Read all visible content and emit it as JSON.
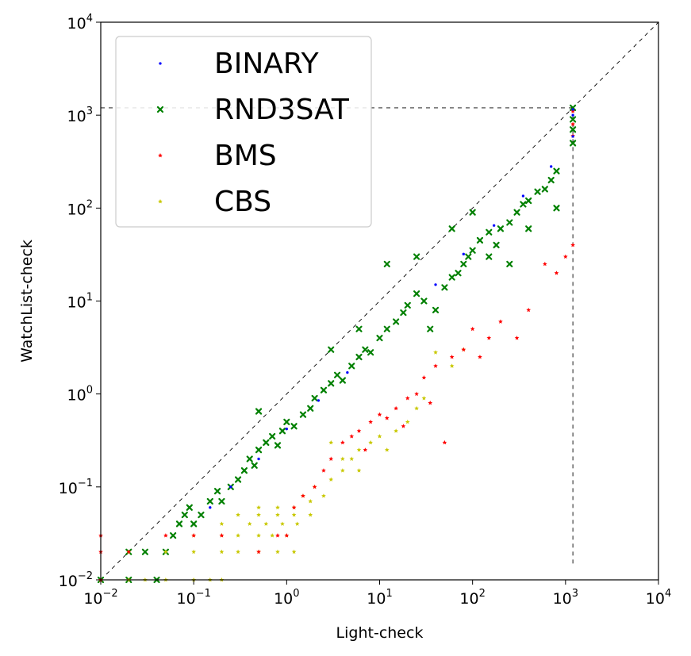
{
  "chart_data": {
    "type": "scatter",
    "title": "",
    "xlabel": "Light-check",
    "ylabel": "WatchList-check",
    "xscale": "log",
    "yscale": "log",
    "xlim": [
      0.01,
      10000
    ],
    "ylim": [
      0.01,
      10000
    ],
    "grid": false,
    "legend_position": "top-left",
    "x_tick_labels": [
      {
        "value": 0.01,
        "base": "10",
        "exp": "−2"
      },
      {
        "value": 0.1,
        "base": "10",
        "exp": "−1"
      },
      {
        "value": 1,
        "base": "10",
        "exp": "0"
      },
      {
        "value": 10,
        "base": "10",
        "exp": "1"
      },
      {
        "value": 100,
        "base": "10",
        "exp": "2"
      },
      {
        "value": 1000,
        "base": "10",
        "exp": "3"
      },
      {
        "value": 10000,
        "base": "10",
        "exp": "4"
      }
    ],
    "y_tick_labels": [
      {
        "value": 0.01,
        "base": "10",
        "exp": "−2"
      },
      {
        "value": 0.1,
        "base": "10",
        "exp": "−1"
      },
      {
        "value": 1,
        "base": "10",
        "exp": "0"
      },
      {
        "value": 10,
        "base": "10",
        "exp": "1"
      },
      {
        "value": 100,
        "base": "10",
        "exp": "2"
      },
      {
        "value": 1000,
        "base": "10",
        "exp": "3"
      },
      {
        "value": 10000,
        "base": "10",
        "exp": "4"
      }
    ],
    "reference_lines": [
      {
        "kind": "diagonal",
        "style": "dashed",
        "from": [
          0.01,
          0.01
        ],
        "to": [
          10000,
          10000
        ]
      },
      {
        "kind": "horizontal",
        "style": "dashed",
        "y": 1200,
        "x_from": 0.01,
        "x_to": 1200
      },
      {
        "kind": "vertical",
        "style": "dashed",
        "x": 1200,
        "y_from": 0.015,
        "y_to": 1200
      }
    ],
    "series": [
      {
        "name": "BINARY",
        "color": "#0000ff",
        "marker": "dot",
        "points": [
          [
            0.15,
            0.06
          ],
          [
            0.25,
            0.1
          ],
          [
            0.5,
            0.2
          ],
          [
            1.0,
            0.42
          ],
          [
            2.2,
            0.85
          ],
          [
            4.5,
            1.7
          ],
          [
            40,
            15
          ],
          [
            80,
            32
          ],
          [
            170,
            65
          ],
          [
            350,
            135
          ],
          [
            700,
            280
          ],
          [
            1200,
            590
          ],
          [
            1200,
            1000
          ],
          [
            1200,
            1150
          ]
        ]
      },
      {
        "name": "RND3SAT",
        "color": "#008000",
        "marker": "x",
        "points": [
          [
            0.01,
            0.01
          ],
          [
            0.02,
            0.02
          ],
          [
            0.02,
            0.01
          ],
          [
            0.03,
            0.02
          ],
          [
            0.04,
            0.01
          ],
          [
            0.05,
            0.02
          ],
          [
            0.06,
            0.03
          ],
          [
            0.07,
            0.04
          ],
          [
            0.08,
            0.05
          ],
          [
            0.09,
            0.06
          ],
          [
            0.1,
            0.04
          ],
          [
            0.12,
            0.05
          ],
          [
            0.15,
            0.07
          ],
          [
            0.18,
            0.09
          ],
          [
            0.2,
            0.07
          ],
          [
            0.25,
            0.1
          ],
          [
            0.3,
            0.12
          ],
          [
            0.35,
            0.15
          ],
          [
            0.4,
            0.2
          ],
          [
            0.45,
            0.17
          ],
          [
            0.5,
            0.25
          ],
          [
            0.6,
            0.3
          ],
          [
            0.7,
            0.35
          ],
          [
            0.8,
            0.28
          ],
          [
            0.9,
            0.4
          ],
          [
            1.0,
            0.5
          ],
          [
            1.2,
            0.45
          ],
          [
            1.5,
            0.6
          ],
          [
            1.8,
            0.7
          ],
          [
            2.0,
            0.9
          ],
          [
            2.5,
            1.1
          ],
          [
            3.0,
            1.3
          ],
          [
            3.5,
            1.6
          ],
          [
            4.0,
            1.4
          ],
          [
            5.0,
            2.0
          ],
          [
            6.0,
            2.5
          ],
          [
            7.0,
            3.0
          ],
          [
            8.0,
            2.8
          ],
          [
            10,
            4.0
          ],
          [
            12,
            5.0
          ],
          [
            15,
            6.0
          ],
          [
            18,
            7.5
          ],
          [
            20,
            9.0
          ],
          [
            25,
            12
          ],
          [
            30,
            10
          ],
          [
            35,
            5.0
          ],
          [
            40,
            8.0
          ],
          [
            50,
            14
          ],
          [
            60,
            18
          ],
          [
            70,
            20
          ],
          [
            80,
            25
          ],
          [
            90,
            30
          ],
          [
            100,
            35
          ],
          [
            120,
            45
          ],
          [
            150,
            55
          ],
          [
            180,
            40
          ],
          [
            200,
            60
          ],
          [
            250,
            70
          ],
          [
            300,
            90
          ],
          [
            350,
            110
          ],
          [
            400,
            120
          ],
          [
            500,
            150
          ],
          [
            600,
            160
          ],
          [
            700,
            200
          ],
          [
            800,
            250
          ],
          [
            0.5,
            0.65
          ],
          [
            3.0,
            3.0
          ],
          [
            6.0,
            5.0
          ],
          [
            12,
            25
          ],
          [
            25,
            30
          ],
          [
            60,
            60
          ],
          [
            100,
            90
          ],
          [
            150,
            30
          ],
          [
            250,
            25
          ],
          [
            400,
            60
          ],
          [
            800,
            100
          ],
          [
            1200,
            1200
          ],
          [
            1200,
            900
          ],
          [
            1200,
            700
          ],
          [
            1200,
            500
          ]
        ]
      },
      {
        "name": "BMS",
        "color": "#ff0000",
        "marker": "star",
        "points": [
          [
            0.01,
            0.01
          ],
          [
            0.01,
            0.02
          ],
          [
            0.01,
            0.03
          ],
          [
            0.02,
            0.02
          ],
          [
            0.05,
            0.03
          ],
          [
            0.1,
            0.03
          ],
          [
            0.2,
            0.03
          ],
          [
            0.5,
            0.02
          ],
          [
            0.8,
            0.03
          ],
          [
            1.0,
            0.03
          ],
          [
            1.5,
            0.08
          ],
          [
            2.0,
            0.1
          ],
          [
            3.0,
            0.2
          ],
          [
            4.0,
            0.3
          ],
          [
            5.0,
            0.35
          ],
          [
            6.0,
            0.4
          ],
          [
            8.0,
            0.5
          ],
          [
            10,
            0.6
          ],
          [
            12,
            0.55
          ],
          [
            15,
            0.7
          ],
          [
            20,
            0.9
          ],
          [
            25,
            1.0
          ],
          [
            30,
            1.5
          ],
          [
            40,
            2.0
          ],
          [
            50,
            0.3
          ],
          [
            60,
            2.5
          ],
          [
            80,
            3.0
          ],
          [
            100,
            5.0
          ],
          [
            120,
            2.5
          ],
          [
            150,
            4.0
          ],
          [
            200,
            6.0
          ],
          [
            300,
            4.0
          ],
          [
            400,
            8.0
          ],
          [
            600,
            25
          ],
          [
            800,
            20
          ],
          [
            1000,
            30
          ],
          [
            1200,
            40
          ],
          [
            1200,
            1100
          ],
          [
            1200,
            800
          ],
          [
            1200,
            600
          ],
          [
            1.2,
            0.06
          ],
          [
            2.5,
            0.15
          ],
          [
            7.0,
            0.25
          ],
          [
            18,
            0.45
          ],
          [
            35,
            0.8
          ]
        ]
      },
      {
        "name": "CBS",
        "color": "#c8c800",
        "marker": "star",
        "points": [
          [
            0.01,
            0.01
          ],
          [
            0.02,
            0.01
          ],
          [
            0.03,
            0.01
          ],
          [
            0.05,
            0.01
          ],
          [
            0.1,
            0.01
          ],
          [
            0.15,
            0.01
          ],
          [
            0.2,
            0.01
          ],
          [
            0.02,
            0.02
          ],
          [
            0.05,
            0.02
          ],
          [
            0.1,
            0.02
          ],
          [
            0.2,
            0.02
          ],
          [
            0.3,
            0.02
          ],
          [
            0.5,
            0.02
          ],
          [
            0.8,
            0.02
          ],
          [
            1.2,
            0.02
          ],
          [
            0.1,
            0.03
          ],
          [
            0.2,
            0.03
          ],
          [
            0.3,
            0.03
          ],
          [
            0.5,
            0.03
          ],
          [
            0.7,
            0.03
          ],
          [
            1.0,
            0.03
          ],
          [
            0.2,
            0.04
          ],
          [
            0.4,
            0.04
          ],
          [
            0.6,
            0.04
          ],
          [
            0.9,
            0.04
          ],
          [
            1.3,
            0.04
          ],
          [
            0.3,
            0.05
          ],
          [
            0.5,
            0.05
          ],
          [
            0.8,
            0.05
          ],
          [
            1.2,
            0.05
          ],
          [
            1.8,
            0.05
          ],
          [
            0.5,
            0.06
          ],
          [
            0.8,
            0.06
          ],
          [
            1.2,
            0.06
          ],
          [
            1.8,
            0.07
          ],
          [
            2.5,
            0.08
          ],
          [
            1.5,
            0.08
          ],
          [
            2.0,
            0.1
          ],
          [
            3.0,
            0.12
          ],
          [
            4.0,
            0.15
          ],
          [
            5.0,
            0.2
          ],
          [
            6.0,
            0.25
          ],
          [
            8.0,
            0.3
          ],
          [
            10,
            0.35
          ],
          [
            12,
            0.25
          ],
          [
            15,
            0.4
          ],
          [
            20,
            0.5
          ],
          [
            25,
            0.7
          ],
          [
            30,
            0.9
          ],
          [
            40,
            2.8
          ],
          [
            60,
            2.0
          ],
          [
            80,
            3.0
          ],
          [
            3.0,
            0.3
          ],
          [
            4.0,
            0.2
          ],
          [
            6.0,
            0.15
          ]
        ]
      }
    ]
  }
}
